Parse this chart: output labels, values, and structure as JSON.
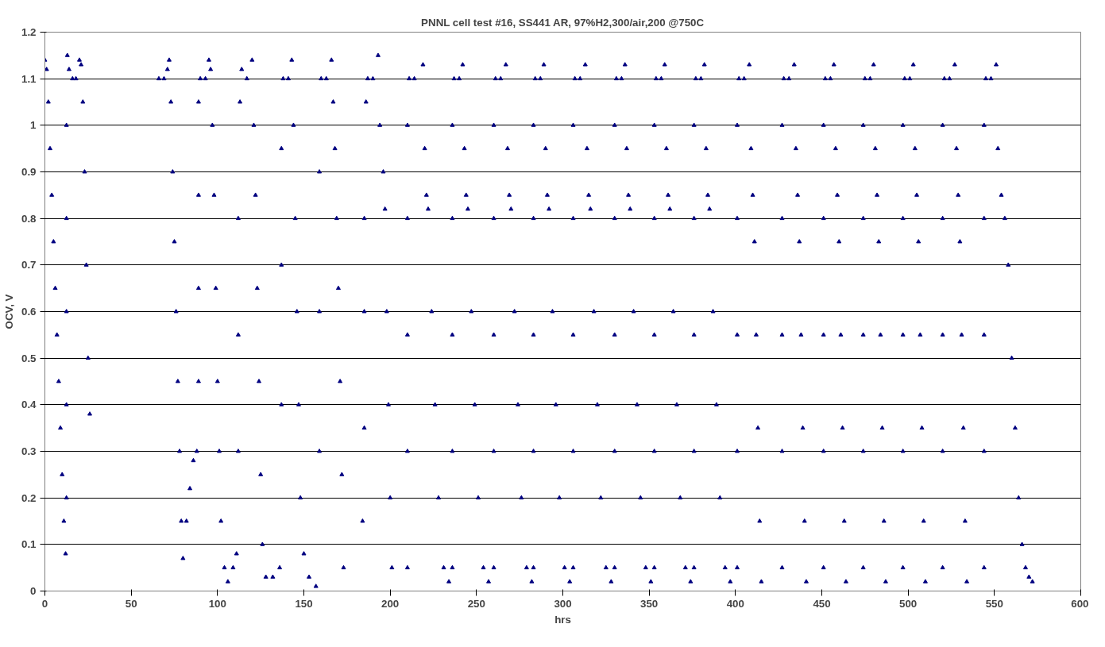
{
  "chart_data": {
    "type": "scatter",
    "title": "PNNL cell test #16, SS441 AR, 97%H2,300/air,200 @750C",
    "xlabel": "hrs",
    "ylabel": "OCV, V",
    "xlim": [
      0,
      600
    ],
    "ylim": [
      0,
      1.2
    ],
    "xticks": [
      0,
      50,
      100,
      150,
      200,
      250,
      300,
      350,
      400,
      450,
      500,
      550,
      600
    ],
    "yticks": [
      0,
      0.1,
      0.2,
      0.3,
      0.4,
      0.5,
      0.6,
      0.7,
      0.8,
      0.9,
      1,
      1.1,
      1.2
    ],
    "grid": "y",
    "marker": "triangle",
    "series": [
      {
        "color": "#000080",
        "x": [
          0,
          1,
          2,
          3,
          4,
          5,
          6,
          7,
          8,
          9,
          10,
          11,
          12,
          12.5,
          12.5,
          12.5,
          12.5,
          12.5,
          13,
          14,
          16,
          18,
          20,
          21,
          22,
          23,
          24,
          25,
          26,
          66,
          69,
          71,
          72,
          73,
          74,
          75,
          76,
          77,
          78,
          79,
          80,
          82,
          84,
          86,
          88,
          89,
          89,
          89,
          89,
          90,
          93,
          95,
          96,
          97,
          98,
          99,
          100,
          101,
          102,
          104,
          106,
          109,
          111,
          112,
          112,
          112,
          113,
          114,
          117,
          120,
          121,
          122,
          123,
          124,
          125,
          126,
          128,
          132,
          136,
          137,
          137,
          137,
          138,
          141,
          143,
          144,
          145,
          146,
          147,
          148,
          150,
          153,
          157,
          159,
          159,
          159,
          160,
          163,
          166,
          167,
          168,
          169,
          170,
          171,
          172,
          173,
          184,
          185,
          185,
          185,
          186,
          187,
          190,
          193,
          194,
          196,
          197,
          198,
          199,
          200,
          201,
          210,
          210,
          210,
          210,
          210,
          211,
          214,
          219,
          220,
          221,
          222,
          224,
          226,
          228,
          231,
          234,
          236,
          236,
          236,
          236,
          236,
          237,
          240,
          242,
          243,
          244,
          245,
          247,
          249,
          251,
          254,
          257,
          260,
          260,
          260,
          260,
          260,
          261,
          264,
          267,
          268,
          269,
          270,
          272,
          274,
          276,
          279,
          282,
          283,
          283,
          283,
          283,
          283,
          284,
          287,
          289,
          290,
          291,
          292,
          294,
          296,
          298,
          301,
          304,
          306,
          306,
          306,
          306,
          306,
          307,
          310,
          313,
          314,
          315,
          316,
          318,
          320,
          322,
          325,
          328,
          330,
          330,
          330,
          330,
          330,
          331,
          334,
          336,
          337,
          338,
          339,
          341,
          343,
          345,
          348,
          351,
          353,
          353,
          353,
          353,
          353,
          354,
          357,
          359,
          360,
          361,
          362,
          364,
          366,
          368,
          371,
          374,
          376,
          376,
          376,
          376,
          376,
          377,
          380,
          382,
          383,
          384,
          385,
          387,
          389,
          391,
          394,
          397,
          401,
          401,
          401,
          401,
          401,
          402,
          405,
          408,
          409,
          410,
          411,
          412,
          413,
          414,
          415,
          427,
          427,
          427,
          427,
          427,
          428,
          431,
          434,
          435,
          436,
          437,
          438,
          439,
          440,
          441,
          451,
          451,
          451,
          451,
          451,
          452,
          455,
          457,
          458,
          459,
          460,
          461,
          462,
          463,
          464,
          474,
          474,
          474,
          474,
          474,
          475,
          478,
          480,
          481,
          482,
          483,
          484,
          485,
          486,
          487,
          497,
          497,
          497,
          497,
          497,
          498,
          501,
          503,
          504,
          505,
          506,
          507,
          508,
          509,
          510,
          520,
          520,
          520,
          520,
          520,
          521,
          524,
          527,
          528,
          529,
          530,
          531,
          532,
          533,
          534,
          544,
          544,
          544,
          544,
          544,
          545,
          548,
          551,
          552,
          554,
          556,
          558,
          560,
          562,
          564,
          566,
          568,
          570,
          572
        ],
        "values": [
          1.14,
          1.12,
          1.05,
          0.95,
          0.85,
          0.75,
          0.65,
          0.55,
          0.45,
          0.35,
          0.25,
          0.15,
          0.08,
          0.2,
          0.4,
          0.6,
          0.8,
          1.0,
          1.15,
          1.12,
          1.1,
          1.1,
          1.14,
          1.13,
          1.05,
          0.9,
          0.7,
          0.5,
          0.38,
          1.1,
          1.1,
          1.12,
          1.14,
          1.05,
          0.9,
          0.75,
          0.6,
          0.45,
          0.3,
          0.15,
          0.07,
          0.15,
          0.22,
          0.28,
          0.3,
          0.45,
          0.65,
          0.85,
          1.05,
          1.1,
          1.1,
          1.14,
          1.12,
          1.0,
          0.85,
          0.65,
          0.45,
          0.3,
          0.15,
          0.05,
          0.02,
          0.05,
          0.08,
          0.3,
          0.55,
          0.8,
          1.05,
          1.12,
          1.1,
          1.14,
          1.0,
          0.85,
          0.65,
          0.45,
          0.25,
          0.1,
          0.03,
          0.03,
          0.05,
          0.4,
          0.7,
          0.95,
          1.1,
          1.1,
          1.14,
          1.0,
          0.8,
          0.6,
          0.4,
          0.2,
          0.08,
          0.03,
          0.01,
          0.3,
          0.6,
          0.9,
          1.1,
          1.1,
          1.14,
          1.05,
          0.95,
          0.8,
          0.65,
          0.45,
          0.25,
          0.05,
          0.15,
          0.35,
          0.6,
          0.8,
          1.05,
          1.1,
          1.1,
          1.15,
          1.0,
          0.9,
          0.82,
          0.6,
          0.4,
          0.2,
          0.05,
          0.05,
          0.3,
          0.55,
          0.8,
          1.0,
          1.1,
          1.1,
          1.13,
          0.95,
          0.85,
          0.82,
          0.6,
          0.4,
          0.2,
          0.05,
          0.02,
          0.05,
          0.3,
          0.55,
          0.8,
          1.0,
          1.1,
          1.1,
          1.13,
          0.95,
          0.85,
          0.82,
          0.6,
          0.4,
          0.2,
          0.05,
          0.02,
          0.05,
          0.3,
          0.55,
          0.8,
          1.0,
          1.1,
          1.1,
          1.13,
          0.95,
          0.85,
          0.82,
          0.6,
          0.4,
          0.2,
          0.05,
          0.02,
          0.05,
          0.3,
          0.55,
          0.8,
          1.0,
          1.1,
          1.1,
          1.13,
          0.95,
          0.85,
          0.82,
          0.6,
          0.4,
          0.2,
          0.05,
          0.02,
          0.05,
          0.3,
          0.55,
          0.8,
          1.0,
          1.1,
          1.1,
          1.13,
          0.95,
          0.85,
          0.82,
          0.6,
          0.4,
          0.2,
          0.05,
          0.02,
          0.05,
          0.3,
          0.55,
          0.8,
          1.0,
          1.1,
          1.1,
          1.13,
          0.95,
          0.85,
          0.82,
          0.6,
          0.4,
          0.2,
          0.05,
          0.02,
          0.05,
          0.3,
          0.55,
          0.8,
          1.0,
          1.1,
          1.1,
          1.13,
          0.95,
          0.85,
          0.82,
          0.6,
          0.4,
          0.2,
          0.05,
          0.02,
          0.05,
          0.3,
          0.55,
          0.8,
          1.0,
          1.1,
          1.1,
          1.13,
          0.95,
          0.85,
          0.82,
          0.6,
          0.4,
          0.2,
          0.05,
          0.02,
          0.05,
          0.3,
          0.55,
          0.8,
          1.0,
          1.1,
          1.1,
          1.13,
          0.95,
          0.85,
          0.75,
          0.55,
          0.35,
          0.15,
          0.02,
          0.05,
          0.3,
          0.55,
          0.8,
          1.0,
          1.1,
          1.1,
          1.13,
          0.95,
          0.85,
          0.75,
          0.55,
          0.35,
          0.15,
          0.02,
          0.05,
          0.3,
          0.55,
          0.8,
          1.0,
          1.1,
          1.1,
          1.13,
          0.95,
          0.85,
          0.75,
          0.55,
          0.35,
          0.15,
          0.02,
          0.05,
          0.3,
          0.55,
          0.8,
          1.0,
          1.1,
          1.1,
          1.13,
          0.95,
          0.85,
          0.75,
          0.55,
          0.35,
          0.15,
          0.02,
          0.05,
          0.3,
          0.55,
          0.8,
          1.0,
          1.1,
          1.1,
          1.13,
          0.95,
          0.85,
          0.75,
          0.55,
          0.35,
          0.15,
          0.02,
          0.05,
          0.3,
          0.55,
          0.8,
          1.0,
          1.1,
          1.1,
          1.13,
          0.95,
          0.85,
          0.75,
          0.55,
          0.35,
          0.15,
          0.02,
          0.05,
          0.3,
          0.55,
          0.8,
          1.0,
          1.1,
          1.1,
          1.13,
          0.95,
          0.85,
          0.8,
          0.7,
          0.5,
          0.35,
          0.2,
          0.1,
          0.05,
          0.03,
          0.02
        ]
      }
    ]
  }
}
